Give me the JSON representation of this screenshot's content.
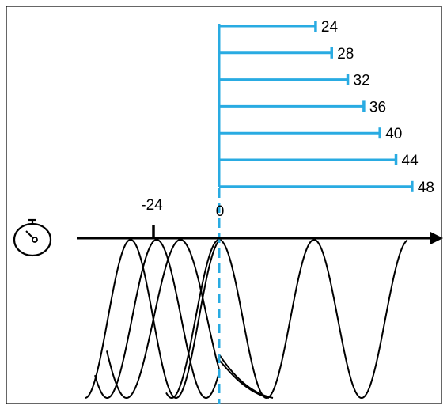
{
  "colors": {
    "accent": "#29ABE2",
    "ink": "#000000",
    "frame": "#000000",
    "background": "#FFFFFF"
  },
  "icons": {
    "clock": "stopwatch-icon"
  },
  "axis": {
    "zero_label": "0",
    "tick_label": "-24",
    "tick_value": -24
  },
  "chart_data": {
    "type": "bar",
    "orientation": "horizontal",
    "values": [
      24,
      28,
      32,
      36,
      40,
      44,
      48
    ],
    "labels": [
      "24",
      "28",
      "32",
      "36",
      "40",
      "44",
      "48"
    ],
    "xlim": [
      0,
      48
    ],
    "grid": false
  }
}
